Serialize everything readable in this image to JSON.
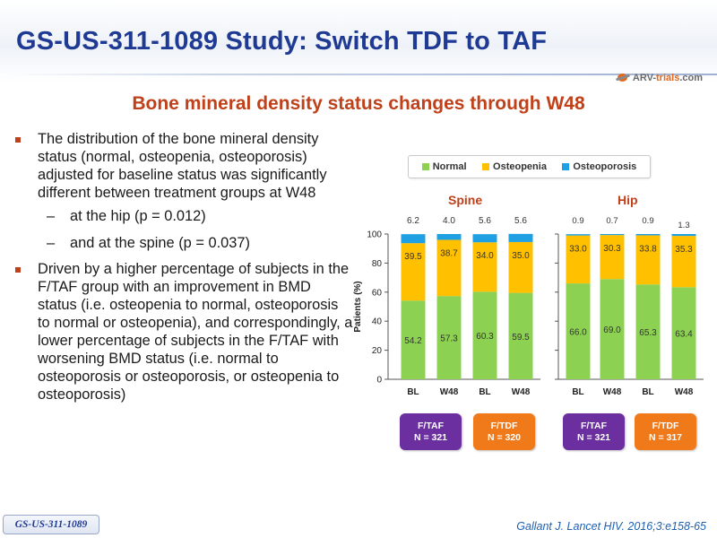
{
  "title": "GS-US-311-1089 Study: Switch TDF to TAF",
  "logo": {
    "prefix": "ARV-",
    "brand": "trials",
    "suffix": ".com"
  },
  "subtitle": "Bone mineral density status changes through W48",
  "bullets": {
    "first": "The distribution of the bone mineral density status (normal, osteopenia, osteoporosis) adjusted for baseline status was significantly different between treatment groups at W48",
    "sub1": "at the hip (p = 0.012)",
    "sub2": "and at the spine (p = 0.037)",
    "second": "Driven by a higher percentage of subjects in the F/TAF group with an improvement in BMD status (i.e. osteopenia to normal, osteoporosis to normal or osteopenia), and correspondingly, a lower percentage of subjects in the F/TAF with worsening BMD status (i.e. normal to osteoporosis or osteoporosis, or osteopenia to osteoporosis)"
  },
  "colors": {
    "normal": "#8cd152",
    "osteopenia": "#ffc000",
    "osteoporosis": "#1fa0e3",
    "accent": "#c0401a",
    "title": "#1f3a93"
  },
  "groups": [
    {
      "name": "F/TAF",
      "n": "N = 321"
    },
    {
      "name": "F/TDF",
      "n": "N = 320"
    },
    {
      "name": "F/TAF",
      "n": "N = 321"
    },
    {
      "name": "F/TDF",
      "n": "N = 317"
    }
  ],
  "chart_data": {
    "type": "bar",
    "stacked": true,
    "ylabel": "Patients (%)",
    "ylim": [
      0,
      100
    ],
    "yticks": [
      0,
      20,
      40,
      60,
      80,
      100
    ],
    "legend": [
      "Normal",
      "Osteopenia",
      "Osteoporosis"
    ],
    "legend_position": "top",
    "grid": false,
    "panels": [
      {
        "title": "Spine",
        "categories": [
          "BL",
          "W48",
          "BL",
          "W48"
        ],
        "series": [
          {
            "name": "Normal",
            "values": [
              54.2,
              57.3,
              60.3,
              59.5
            ]
          },
          {
            "name": "Osteopenia",
            "values": [
              39.5,
              38.7,
              34.0,
              35.0
            ]
          },
          {
            "name": "Osteoporosis",
            "values": [
              6.2,
              4.0,
              5.6,
              5.6
            ]
          }
        ],
        "labels": {
          "normal": [
            "54.2",
            "57.3",
            "60.3",
            "59.5"
          ],
          "osteopenia": [
            "39.5",
            "38.7",
            "34.0",
            "35.0"
          ],
          "osteoporosis": [
            "6.2",
            "4.0",
            "5.6",
            "5.6"
          ]
        }
      },
      {
        "title": "Hip",
        "categories": [
          "BL",
          "W48",
          "BL",
          "W48"
        ],
        "series": [
          {
            "name": "Normal",
            "values": [
              66.0,
              69.0,
              65.3,
              63.4
            ]
          },
          {
            "name": "Osteopenia",
            "values": [
              33.0,
              30.3,
              33.8,
              35.3
            ]
          },
          {
            "name": "Osteoporosis",
            "values": [
              0.9,
              0.7,
              0.9,
              1.3
            ]
          }
        ],
        "labels": {
          "normal": [
            "66.0",
            "69.0",
            "65.3",
            "63.4"
          ],
          "osteopenia": [
            "33.0",
            "30.3",
            "33.8",
            "35.3"
          ],
          "osteoporosis": [
            "0.9",
            "0.7",
            "0.9",
            "1.3"
          ]
        }
      }
    ]
  },
  "footer": {
    "study_tag": "GS-US-311-1089",
    "reference": "Gallant J. Lancet HIV. 2016;3:e158-65"
  }
}
